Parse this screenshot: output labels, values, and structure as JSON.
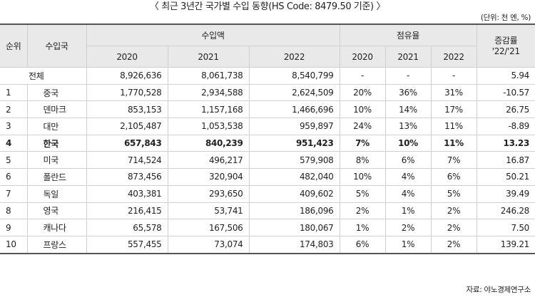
{
  "title": "〈 최근 3년간 국가별 수입 동향(HS Code: 8479.50 기준) 〉",
  "unit_note": "(단위: 천 엔, %)",
  "source": "자료: 야노경제연구소",
  "header": {
    "rank": "순위",
    "country": "수입국",
    "import_amount": "수입액",
    "share": "점유율",
    "growth_line1": "증감률",
    "growth_line2": "'22/'21",
    "years": [
      "2020",
      "2021",
      "2022"
    ]
  },
  "total": {
    "label": "전체",
    "amounts": [
      "8,926,636",
      "8,061,738",
      "8,540,799"
    ],
    "shares": [
      "-",
      "-",
      "-"
    ],
    "growth": "5.94"
  },
  "rows": [
    {
      "rank": "1",
      "country": "중국",
      "amounts": [
        "1,770,528",
        "2,934,588",
        "2,624,509"
      ],
      "shares": [
        "20%",
        "36%",
        "31%"
      ],
      "growth": "-10.57"
    },
    {
      "rank": "2",
      "country": "덴마크",
      "amounts": [
        "853,153",
        "1,157,168",
        "1,466,696"
      ],
      "shares": [
        "10%",
        "14%",
        "17%"
      ],
      "growth": "26.75"
    },
    {
      "rank": "3",
      "country": "대만",
      "amounts": [
        "2,105,487",
        "1,053,538",
        "959,897"
      ],
      "shares": [
        "24%",
        "13%",
        "11%"
      ],
      "growth": "-8.89"
    },
    {
      "rank": "4",
      "country": "한국",
      "amounts": [
        "657,843",
        "840,239",
        "951,423"
      ],
      "shares": [
        "7%",
        "10%",
        "11%"
      ],
      "growth": "13.23"
    },
    {
      "rank": "5",
      "country": "미국",
      "amounts": [
        "714,524",
        "496,217",
        "579,908"
      ],
      "shares": [
        "8%",
        "6%",
        "7%"
      ],
      "growth": "16.87"
    },
    {
      "rank": "6",
      "country": "폴란드",
      "amounts": [
        "873,456",
        "320,904",
        "482,040"
      ],
      "shares": [
        "10%",
        "4%",
        "6%"
      ],
      "growth": "50.21"
    },
    {
      "rank": "7",
      "country": "독일",
      "amounts": [
        "403,381",
        "293,650",
        "409,602"
      ],
      "shares": [
        "5%",
        "4%",
        "5%"
      ],
      "growth": "39.49"
    },
    {
      "rank": "8",
      "country": "영국",
      "amounts": [
        "216,415",
        "53,741",
        "186,096"
      ],
      "shares": [
        "2%",
        "1%",
        "2%"
      ],
      "growth": "246.28"
    },
    {
      "rank": "9",
      "country": "캐나다",
      "amounts": [
        "65,578",
        "167,506",
        "180,067"
      ],
      "shares": [
        "1%",
        "2%",
        "2%"
      ],
      "growth": "7.50"
    },
    {
      "rank": "10",
      "country": "프랑스",
      "amounts": [
        "557,455",
        "73,074",
        "174,803"
      ],
      "shares": [
        "6%",
        "1%",
        "2%"
      ],
      "growth": "139.21"
    }
  ]
}
